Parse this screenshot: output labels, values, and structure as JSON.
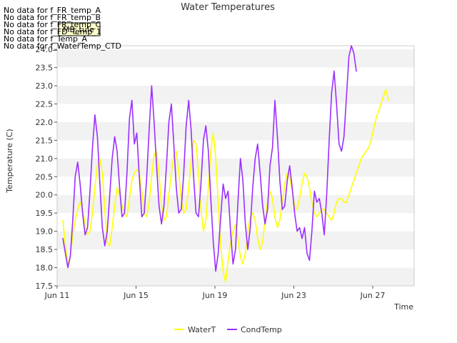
{
  "chart_data": {
    "type": "line",
    "title": "Water Temperatures",
    "xlabel": "Time",
    "ylabel": "Temperature (C)",
    "x_ticks": [
      "Jun 11",
      "Jun 15",
      "Jun 19",
      "Jun 23",
      "Jun 27"
    ],
    "y_ticks": [
      "17.5",
      "18.0",
      "18.5",
      "19.0",
      "19.5",
      "20.0",
      "20.5",
      "21.0",
      "21.5",
      "22.0",
      "22.5",
      "23.0",
      "23.5",
      "24.0"
    ],
    "ylim": [
      17.5,
      24.1
    ],
    "xlim_days": [
      "Jun 11",
      "Jun 29.1"
    ],
    "grid": "horizontal alternating bands",
    "legend_position": "bottom",
    "no_data_messages": [
      "No data for f_FR_temp_A",
      "No data for f_FR_temp_B",
      "No data for f_FR_temp_C",
      "No data for f_FD_Temp_1",
      "No data for f_Temp_A",
      "No data for f_WaterTemp_CTD"
    ],
    "tooltip_label": "MB_tule",
    "series": [
      {
        "name": "WaterT",
        "color": "#ffff00",
        "points": [
          [
            "Jun 11 07:00",
            19.3
          ],
          [
            "Jun 11 10:00",
            18.6
          ],
          [
            "Jun 11 13:00",
            18.1
          ],
          [
            "Jun 11 16:00",
            18.3
          ],
          [
            "Jun 11 19:00",
            18.9
          ],
          [
            "Jun 11 22:00",
            19.3
          ],
          [
            "Jun 12 01:00",
            19.6
          ],
          [
            "Jun 12 04:00",
            19.8
          ],
          [
            "Jun 12 07:00",
            19.6
          ],
          [
            "Jun 12 10:00",
            19.2
          ],
          [
            "Jun 12 13:00",
            18.9
          ],
          [
            "Jun 12 16:00",
            19.0
          ],
          [
            "Jun 12 19:00",
            19.5
          ],
          [
            "Jun 12 22:00",
            20.2
          ],
          [
            "Jun 13 01:00",
            20.8
          ],
          [
            "Jun 13 04:00",
            21.0
          ],
          [
            "Jun 13 07:00",
            20.6
          ],
          [
            "Jun 13 10:00",
            19.6
          ],
          [
            "Jun 13 13:00",
            18.7
          ],
          [
            "Jun 13 16:00",
            18.6
          ],
          [
            "Jun 13 19:00",
            19.1
          ],
          [
            "Jun 13 22:00",
            19.7
          ],
          [
            "Jun 14 01:00",
            20.2
          ],
          [
            "Jun 14 04:00",
            20.0
          ],
          [
            "Jun 14 07:00",
            19.7
          ],
          [
            "Jun 14 10:00",
            19.5
          ],
          [
            "Jun 14 13:00",
            19.4
          ],
          [
            "Jun 14 16:00",
            19.9
          ],
          [
            "Jun 14 19:00",
            20.4
          ],
          [
            "Jun 14 22:00",
            20.6
          ],
          [
            "Jun 15 01:00",
            20.7
          ],
          [
            "Jun 15 04:00",
            20.6
          ],
          [
            "Jun 15 07:00",
            20.1
          ],
          [
            "Jun 15 10:00",
            19.5
          ],
          [
            "Jun 15 13:00",
            19.4
          ],
          [
            "Jun 15 16:00",
            19.8
          ],
          [
            "Jun 15 19:00",
            20.5
          ],
          [
            "Jun 15 22:00",
            21.1
          ],
          [
            "Jun 16 01:00",
            21.2
          ],
          [
            "Jun 16 04:00",
            20.6
          ],
          [
            "Jun 16 07:00",
            19.7
          ],
          [
            "Jun 16 10:00",
            19.3
          ],
          [
            "Jun 16 13:00",
            19.4
          ],
          [
            "Jun 16 16:00",
            20.0
          ],
          [
            "Jun 16 19:00",
            20.6
          ],
          [
            "Jun 16 22:00",
            21.1
          ],
          [
            "Jun 17 01:00",
            21.2
          ],
          [
            "Jun 17 04:00",
            20.6
          ],
          [
            "Jun 17 07:00",
            19.9
          ],
          [
            "Jun 17 10:00",
            19.5
          ],
          [
            "Jun 17 13:00",
            19.6
          ],
          [
            "Jun 17 16:00",
            20.2
          ],
          [
            "Jun 17 19:00",
            20.9
          ],
          [
            "Jun 17 22:00",
            21.5
          ],
          [
            "Jun 18 01:00",
            21.4
          ],
          [
            "Jun 18 04:00",
            20.6
          ],
          [
            "Jun 18 07:00",
            19.6
          ],
          [
            "Jun 18 10:00",
            19.0
          ],
          [
            "Jun 18 13:00",
            19.3
          ],
          [
            "Jun 18 16:00",
            20.2
          ],
          [
            "Jun 18 19:00",
            21.2
          ],
          [
            "Jun 18 22:00",
            21.7
          ],
          [
            "Jun 19 01:00",
            21.0
          ],
          [
            "Jun 19 04:00",
            19.8
          ],
          [
            "Jun 19 07:00",
            18.6
          ],
          [
            "Jun 19 10:00",
            17.9
          ],
          [
            "Jun 19 13:00",
            17.6
          ],
          [
            "Jun 19 16:00",
            18.2
          ],
          [
            "Jun 19 19:00",
            18.7
          ],
          [
            "Jun 19 22:00",
            19.0
          ],
          [
            "Jun 20 01:00",
            19.2
          ],
          [
            "Jun 20 04:00",
            18.8
          ],
          [
            "Jun 20 07:00",
            18.3
          ],
          [
            "Jun 20 10:00",
            18.1
          ],
          [
            "Jun 20 13:00",
            18.4
          ],
          [
            "Jun 20 16:00",
            19.0
          ],
          [
            "Jun 20 19:00",
            19.4
          ],
          [
            "Jun 20 22:00",
            19.5
          ],
          [
            "Jun 21 01:00",
            19.3
          ],
          [
            "Jun 21 04:00",
            18.8
          ],
          [
            "Jun 21 07:00",
            18.5
          ],
          [
            "Jun 21 10:00",
            18.7
          ],
          [
            "Jun 21 13:00",
            19.3
          ],
          [
            "Jun 21 16:00",
            19.8
          ],
          [
            "Jun 21 19:00",
            20.1
          ],
          [
            "Jun 21 22:00",
            19.9
          ],
          [
            "Jun 22 01:00",
            19.4
          ],
          [
            "Jun 22 04:00",
            19.1
          ],
          [
            "Jun 22 07:00",
            19.3
          ],
          [
            "Jun 22 10:00",
            19.8
          ],
          [
            "Jun 22 13:00",
            20.3
          ],
          [
            "Jun 22 16:00",
            20.6
          ],
          [
            "Jun 22 19:00",
            20.5
          ],
          [
            "Jun 22 22:00",
            20.1
          ],
          [
            "Jun 23 01:00",
            19.7
          ],
          [
            "Jun 23 04:00",
            19.6
          ],
          [
            "Jun 23 07:00",
            19.9
          ],
          [
            "Jun 23 10:00",
            20.3
          ],
          [
            "Jun 23 13:00",
            20.6
          ],
          [
            "Jun 23 16:00",
            20.5
          ],
          [
            "Jun 23 19:00",
            20.2
          ],
          [
            "Jun 23 22:00",
            19.8
          ],
          [
            "Jun 24 01:00",
            19.5
          ],
          [
            "Jun 24 04:00",
            19.4
          ],
          [
            "Jun 24 07:00",
            19.5
          ],
          [
            "Jun 24 10:00",
            19.6
          ],
          [
            "Jun 24 13:00",
            19.6
          ],
          [
            "Jun 24 16:00",
            19.5
          ],
          [
            "Jun 24 19:00",
            19.4
          ],
          [
            "Jun 24 22:00",
            19.3
          ],
          [
            "Jun 25 01:00",
            19.5
          ],
          [
            "Jun 25 04:00",
            19.8
          ],
          [
            "Jun 25 07:00",
            19.9
          ],
          [
            "Jun 25 10:00",
            19.9
          ],
          [
            "Jun 25 13:00",
            19.8
          ],
          [
            "Jun 25 16:00",
            19.8
          ],
          [
            "Jun 25 19:00",
            20.0
          ],
          [
            "Jun 25 22:00",
            20.2
          ],
          [
            "Jun 26 01:00",
            20.4
          ],
          [
            "Jun 26 04:00",
            20.6
          ],
          [
            "Jun 26 07:00",
            20.8
          ],
          [
            "Jun 26 10:00",
            21.0
          ],
          [
            "Jun 26 13:00",
            21.1
          ],
          [
            "Jun 26 16:00",
            21.2
          ],
          [
            "Jun 26 19:00",
            21.3
          ],
          [
            "Jun 26 22:00",
            21.5
          ],
          [
            "Jun 27 01:00",
            21.8
          ],
          [
            "Jun 27 04:00",
            22.1
          ],
          [
            "Jun 27 07:00",
            22.3
          ],
          [
            "Jun 27 10:00",
            22.5
          ],
          [
            "Jun 27 13:00",
            22.7
          ],
          [
            "Jun 27 16:00",
            22.9
          ],
          [
            "Jun 27 19:00",
            22.6
          ]
        ]
      },
      {
        "name": "CondTemp",
        "color": "#9b30ff",
        "points": [
          [
            "Jun 11 07:00",
            18.8
          ],
          [
            "Jun 11 10:00",
            18.4
          ],
          [
            "Jun 11 13:00",
            18.0
          ],
          [
            "Jun 11 16:00",
            18.3
          ],
          [
            "Jun 11 19:00",
            19.3
          ],
          [
            "Jun 11 22:00",
            20.5
          ],
          [
            "Jun 12 01:00",
            20.9
          ],
          [
            "Jun 12 04:00",
            20.3
          ],
          [
            "Jun 12 07:00",
            19.5
          ],
          [
            "Jun 12 10:00",
            18.9
          ],
          [
            "Jun 12 13:00",
            19.1
          ],
          [
            "Jun 12 16:00",
            20.1
          ],
          [
            "Jun 12 19:00",
            21.3
          ],
          [
            "Jun 12 22:00",
            22.2
          ],
          [
            "Jun 13 01:00",
            21.6
          ],
          [
            "Jun 13 04:00",
            20.3
          ],
          [
            "Jun 13 07:00",
            19.1
          ],
          [
            "Jun 13 10:00",
            18.6
          ],
          [
            "Jun 13 13:00",
            19.0
          ],
          [
            "Jun 13 16:00",
            20.0
          ],
          [
            "Jun 13 19:00",
            21.0
          ],
          [
            "Jun 13 22:00",
            21.6
          ],
          [
            "Jun 14 01:00",
            21.2
          ],
          [
            "Jun 14 04:00",
            20.2
          ],
          [
            "Jun 14 07:00",
            19.4
          ],
          [
            "Jun 14 10:00",
            19.5
          ],
          [
            "Jun 14 13:00",
            20.6
          ],
          [
            "Jun 14 16:00",
            22.1
          ],
          [
            "Jun 14 19:00",
            22.6
          ],
          [
            "Jun 14 22:00",
            21.4
          ],
          [
            "Jun 15 01:00",
            21.7
          ],
          [
            "Jun 15 04:00",
            20.5
          ],
          [
            "Jun 15 07:00",
            19.4
          ],
          [
            "Jun 15 10:00",
            19.5
          ],
          [
            "Jun 15 13:00",
            20.5
          ],
          [
            "Jun 15 16:00",
            21.8
          ],
          [
            "Jun 15 19:00",
            23.0
          ],
          [
            "Jun 15 22:00",
            22.0
          ],
          [
            "Jun 16 01:00",
            20.8
          ],
          [
            "Jun 16 04:00",
            19.7
          ],
          [
            "Jun 16 07:00",
            19.2
          ],
          [
            "Jun 16 10:00",
            19.7
          ],
          [
            "Jun 16 13:00",
            20.8
          ],
          [
            "Jun 16 16:00",
            22.0
          ],
          [
            "Jun 16 19:00",
            22.5
          ],
          [
            "Jun 16 22:00",
            21.4
          ],
          [
            "Jun 17 01:00",
            20.2
          ],
          [
            "Jun 17 04:00",
            19.5
          ],
          [
            "Jun 17 07:00",
            19.6
          ],
          [
            "Jun 17 10:00",
            20.6
          ],
          [
            "Jun 17 13:00",
            21.9
          ],
          [
            "Jun 17 16:00",
            22.6
          ],
          [
            "Jun 17 19:00",
            21.8
          ],
          [
            "Jun 17 22:00",
            20.5
          ],
          [
            "Jun 18 01:00",
            19.5
          ],
          [
            "Jun 18 04:00",
            19.4
          ],
          [
            "Jun 18 07:00",
            20.3
          ],
          [
            "Jun 18 10:00",
            21.5
          ],
          [
            "Jun 18 13:00",
            21.9
          ],
          [
            "Jun 18 16:00",
            21.2
          ],
          [
            "Jun 18 19:00",
            19.9
          ],
          [
            "Jun 18 22:00",
            18.7
          ],
          [
            "Jun 19 01:00",
            17.9
          ],
          [
            "Jun 19 04:00",
            18.4
          ],
          [
            "Jun 19 07:00",
            19.4
          ],
          [
            "Jun 19 10:00",
            20.3
          ],
          [
            "Jun 19 13:00",
            19.9
          ],
          [
            "Jun 19 16:00",
            20.1
          ],
          [
            "Jun 19 19:00",
            19.0
          ],
          [
            "Jun 19 22:00",
            18.1
          ],
          [
            "Jun 20 01:00",
            18.5
          ],
          [
            "Jun 20 04:00",
            19.8
          ],
          [
            "Jun 20 07:00",
            21.0
          ],
          [
            "Jun 20 10:00",
            20.4
          ],
          [
            "Jun 20 13:00",
            19.2
          ],
          [
            "Jun 20 16:00",
            18.5
          ],
          [
            "Jun 20 19:00",
            19.1
          ],
          [
            "Jun 20 22:00",
            20.2
          ],
          [
            "Jun 21 01:00",
            21.0
          ],
          [
            "Jun 21 04:00",
            21.4
          ],
          [
            "Jun 21 07:00",
            20.6
          ],
          [
            "Jun 21 10:00",
            19.7
          ],
          [
            "Jun 21 13:00",
            19.2
          ],
          [
            "Jun 21 16:00",
            19.6
          ],
          [
            "Jun 21 19:00",
            20.8
          ],
          [
            "Jun 21 22:00",
            21.3
          ],
          [
            "Jun 22 01:00",
            22.6
          ],
          [
            "Jun 22 04:00",
            21.6
          ],
          [
            "Jun 22 07:00",
            20.4
          ],
          [
            "Jun 22 10:00",
            19.6
          ],
          [
            "Jun 22 13:00",
            19.7
          ],
          [
            "Jun 22 16:00",
            20.4
          ],
          [
            "Jun 22 19:00",
            20.8
          ],
          [
            "Jun 22 22:00",
            20.2
          ],
          [
            "Jun 23 01:00",
            19.5
          ],
          [
            "Jun 23 04:00",
            19.0
          ],
          [
            "Jun 23 07:00",
            19.1
          ],
          [
            "Jun 23 10:00",
            18.8
          ],
          [
            "Jun 23 13:00",
            19.1
          ],
          [
            "Jun 23 16:00",
            18.4
          ],
          [
            "Jun 23 19:00",
            18.2
          ],
          [
            "Jun 23 22:00",
            19.0
          ],
          [
            "Jun 24 01:00",
            20.1
          ],
          [
            "Jun 24 04:00",
            19.8
          ],
          [
            "Jun 24 07:00",
            19.9
          ],
          [
            "Jun 24 10:00",
            19.5
          ],
          [
            "Jun 24 13:00",
            18.9
          ],
          [
            "Jun 24 16:00",
            20.0
          ],
          [
            "Jun 24 19:00",
            21.5
          ],
          [
            "Jun 24 22:00",
            22.8
          ],
          [
            "Jun 25 01:00",
            23.4
          ],
          [
            "Jun 25 04:00",
            22.5
          ],
          [
            "Jun 25 07:00",
            21.4
          ],
          [
            "Jun 25 10:00",
            21.2
          ],
          [
            "Jun 25 13:00",
            21.6
          ],
          [
            "Jun 25 16:00",
            22.7
          ],
          [
            "Jun 25 19:00",
            23.8
          ],
          [
            "Jun 25 22:00",
            24.1
          ],
          [
            "Jun 26 01:00",
            23.9
          ],
          [
            "Jun 26 04:00",
            23.4
          ]
        ]
      }
    ]
  }
}
